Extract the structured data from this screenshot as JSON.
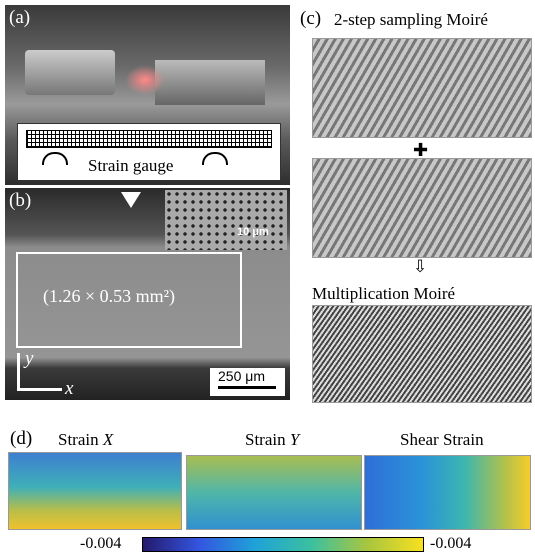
{
  "panel_a": {
    "label": "(a)",
    "gauge_label": "Strain gauge"
  },
  "panel_b": {
    "label": "(b)",
    "inset_scale": "10 μm",
    "area": "(1.26 × 0.53 mm²)",
    "scale": "250 μm",
    "axis_y": "y",
    "axis_x": "x"
  },
  "panel_c": {
    "label": "(c)",
    "title": "2-step sampling Moiré",
    "result_title": "Multiplication Moiré"
  },
  "panel_d": {
    "label": "(d)",
    "maps": [
      {
        "name": "Strain",
        "var": "X"
      },
      {
        "name": "Strain",
        "var": "Y"
      },
      {
        "name": "Shear Strain"
      }
    ],
    "colorbar_min": "-0.004",
    "colorbar_max": "-0.004"
  }
}
